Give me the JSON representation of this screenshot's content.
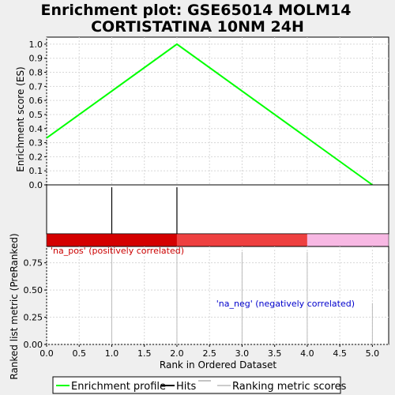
{
  "chart_data": {
    "title_line1": "Enrichment plot: GSE65014 MOLM14",
    "title_line2": "CORTISTATINA 10NM 24H",
    "type": "line",
    "top_panel": {
      "ylabel": "Enrichment score (ES)",
      "ylim": [
        0.0,
        1.05
      ],
      "yticks": [
        "0.0",
        "0.1",
        "0.2",
        "0.3",
        "0.4",
        "0.5",
        "0.6",
        "0.7",
        "0.8",
        "0.9",
        "1.0"
      ],
      "grid": true,
      "series": [
        {
          "color": "#00ff00",
          "points": [
            [
              0.0,
              0.333
            ],
            [
              2.0,
              1.0
            ],
            [
              5.0,
              0.0
            ]
          ]
        }
      ]
    },
    "hits": {
      "color": "#000000",
      "positions": [
        1.0,
        2.0
      ]
    },
    "color_bar": [
      {
        "from": 0.0,
        "to": 2.0,
        "color": "#d40000"
      },
      {
        "from": 2.0,
        "to": 4.0,
        "color": "#ee4040"
      },
      {
        "from": 4.0,
        "to": 5.25,
        "color": "#f7b8e3"
      }
    ],
    "bottom_panel": {
      "ylabel": "Ranked list metric (PreRanked)",
      "ylim": [
        0.0,
        0.9
      ],
      "yticks": [
        "0.00",
        "0.25",
        "0.50",
        "0.75"
      ],
      "grid": true,
      "bars": [
        {
          "x": 1.0,
          "value": 1.0
        },
        {
          "x": 2.0,
          "value": 1.0
        },
        {
          "x": 3.0,
          "value": 0.85
        },
        {
          "x": 4.0,
          "value": 0.85
        },
        {
          "x": 5.0,
          "value": 0.38
        }
      ],
      "annotations": [
        {
          "text": "'na_pos' (positively correlated)",
          "color": "#cc0000"
        },
        {
          "text": "'na_neg' (negatively correlated)",
          "color": "#0000cc"
        }
      ]
    },
    "x": {
      "xlabel": "Rank in Ordered Dataset",
      "xlim": [
        0.0,
        5.25
      ],
      "xticks": [
        "0.0",
        "0.5",
        "1.0",
        "1.5",
        "2.0",
        "2.5",
        "3.0",
        "3.5",
        "4.0",
        "4.5",
        "5.0"
      ]
    },
    "legend": [
      {
        "label": "Enrichment profile",
        "color": "#00ff00"
      },
      {
        "label": "Hits",
        "color": "#000000"
      },
      {
        "label": "Ranking metric scores",
        "color": "#cccccc"
      }
    ]
  }
}
